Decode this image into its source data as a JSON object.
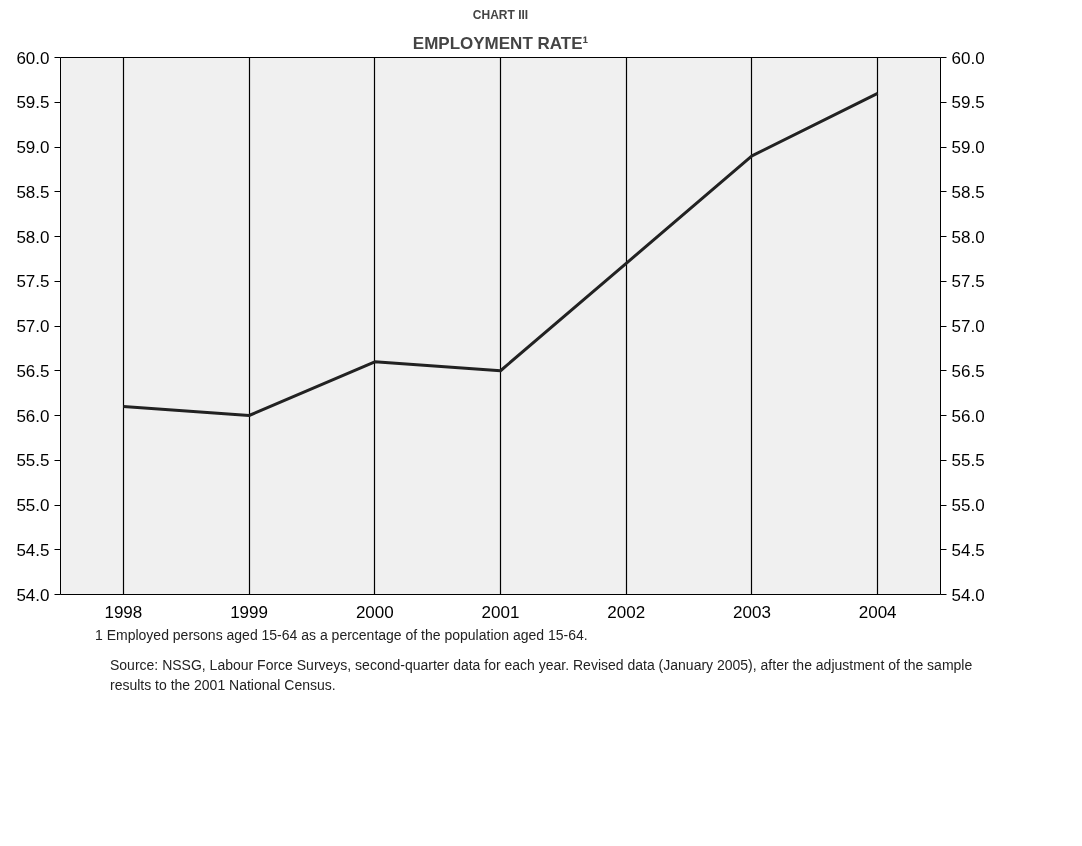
{
  "chart_data": {
    "type": "line",
    "title": "CHART III",
    "subtitle": "EMPLOYMENT RATE¹",
    "categories": [
      "1998",
      "1999",
      "2000",
      "2001",
      "2002",
      "2003",
      "2004"
    ],
    "series": [
      {
        "color": "#222222",
        "values": [
          56.1,
          56.0,
          56.6,
          56.5,
          57.7,
          58.9,
          59.6
        ]
      }
    ],
    "ylim": [
      54.0,
      60.0
    ],
    "yticks": [
      {
        "value": 54,
        "label": "54.0"
      },
      {
        "value": 54.5,
        "label": "54.5"
      },
      {
        "value": 55,
        "label": "55.0"
      },
      {
        "value": 55.5,
        "label": "55.5"
      },
      {
        "value": 56,
        "label": "56.0"
      },
      {
        "value": 56.5,
        "label": "56.5"
      },
      {
        "value": 57,
        "label": "57.0"
      },
      {
        "value": 57.5,
        "label": "57.5"
      },
      {
        "value": 58,
        "label": "58.0"
      },
      {
        "value": 58.5,
        "label": "58.5"
      },
      {
        "value": 59,
        "label": "59.0"
      },
      {
        "value": 59.5,
        "label": "59.5"
      },
      {
        "value": 60,
        "label": "60.0"
      }
    ],
    "y2lim": [
      54.0,
      60.0
    ],
    "y2ticks": [
      {
        "value": 54,
        "label": "54.0"
      },
      {
        "value": 54.5,
        "label": "54.5"
      },
      {
        "value": 55,
        "label": "55.0"
      },
      {
        "value": 55.5,
        "label": "55.5"
      },
      {
        "value": 56,
        "label": "56.0"
      },
      {
        "value": 56.5,
        "label": "56.5"
      },
      {
        "value": 57,
        "label": "57.0"
      },
      {
        "value": 57.5,
        "label": "57.5"
      },
      {
        "value": 58,
        "label": "58.0"
      },
      {
        "value": 58.5,
        "label": "58.5"
      },
      {
        "value": 59,
        "label": "59.0"
      },
      {
        "value": 59.5,
        "label": "59.5"
      },
      {
        "value": 60,
        "label": "60.0"
      }
    ],
    "grid": "x",
    "marker": "none",
    "line_style": "solid",
    "annotations": [
      "1 Employed persons aged 15-64 as a percentage of the population aged 15-64.",
      "Source: NSSG, Labour Force Surveys, second-quarter data for each year. Revised data (January 2005), after the adjustment of the sample results to the 2001 National Census."
    ]
  }
}
